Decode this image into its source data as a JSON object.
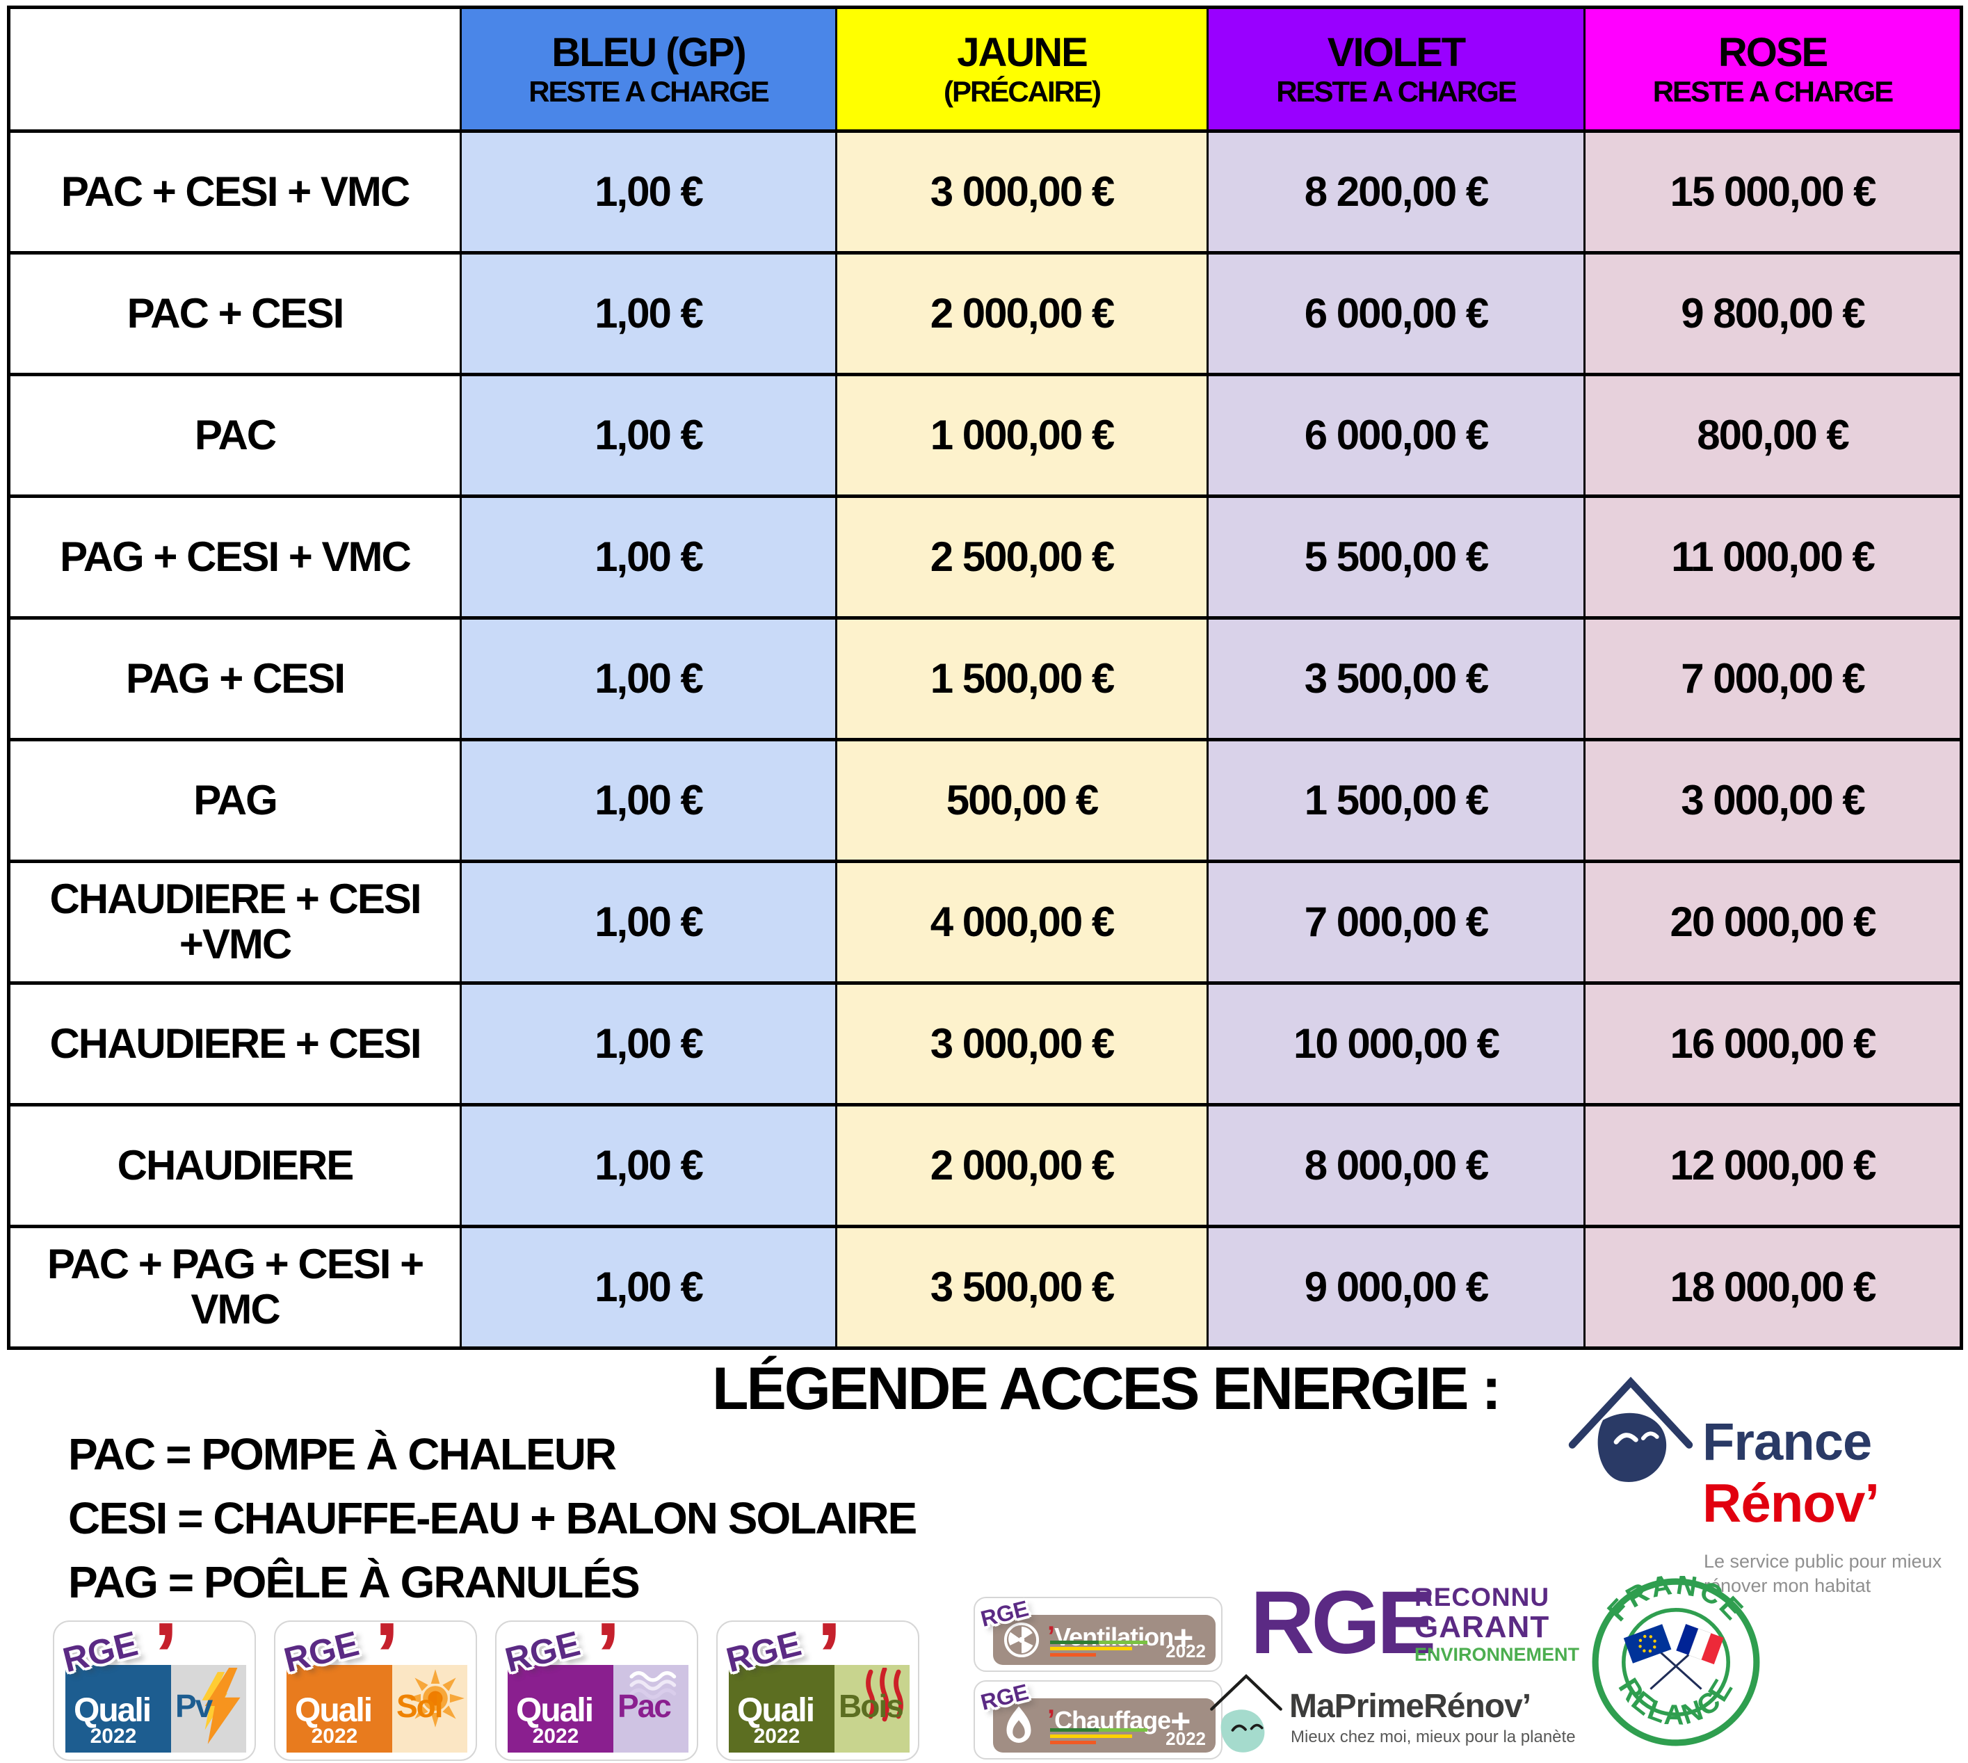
{
  "table": {
    "columns": [
      {
        "title": "",
        "subtitle": "",
        "header_bg": "#ffffff",
        "cell_bg": "#ffffff"
      },
      {
        "title": "BLEU (GP)",
        "subtitle": "RESTE A CHARGE",
        "header_bg": "#4a86e8",
        "cell_bg": "#c9daf8"
      },
      {
        "title": "JAUNE",
        "subtitle": "(PRÉCAIRE)",
        "header_bg": "#ffff00",
        "cell_bg": "#fdf2cc"
      },
      {
        "title": "VIOLET",
        "subtitle": "RESTE A CHARGE",
        "header_bg": "#9900ff",
        "cell_bg": "#d9d2e9"
      },
      {
        "title": "ROSE",
        "subtitle": "RESTE A CHARGE",
        "header_bg": "#ff00ff",
        "cell_bg": "#e7d1dc"
      }
    ],
    "rows": [
      {
        "label": "PAC + CESI + VMC",
        "values": [
          "1,00 €",
          "3 000,00 €",
          "8 200,00 €",
          "15 000,00 €"
        ]
      },
      {
        "label": "PAC + CESI",
        "values": [
          "1,00 €",
          "2 000,00 €",
          "6 000,00 €",
          "9 800,00 €"
        ]
      },
      {
        "label": "PAC",
        "values": [
          "1,00 €",
          "1 000,00 €",
          "6 000,00 €",
          "800,00 €"
        ]
      },
      {
        "label": "PAG + CESI + VMC",
        "values": [
          "1,00 €",
          "2 500,00 €",
          "5 500,00 €",
          "11 000,00 €"
        ]
      },
      {
        "label": "PAG + CESI",
        "values": [
          "1,00 €",
          "1 500,00 €",
          "3 500,00 €",
          "7 000,00 €"
        ]
      },
      {
        "label": "PAG",
        "values": [
          "1,00 €",
          "500,00 €",
          "1 500,00 €",
          "3 000,00 €"
        ]
      },
      {
        "label": "CHAUDIERE + CESI +VMC",
        "values": [
          "1,00 €",
          "4 000,00 €",
          "7 000,00 €",
          "20 000,00 €"
        ]
      },
      {
        "label": "CHAUDIERE + CESI",
        "values": [
          "1,00 €",
          "3 000,00 €",
          "10 000,00 €",
          "16 000,00 €"
        ]
      },
      {
        "label": "CHAUDIERE",
        "values": [
          "1,00 €",
          "2 000,00 €",
          "8 000,00 €",
          "12 000,00 €"
        ]
      },
      {
        "label": "PAC + PAG + CESI + VMC",
        "values": [
          "1,00 €",
          "3 500,00 €",
          "9 000,00 €",
          "18 000,00 €"
        ]
      }
    ]
  },
  "legend": {
    "title": "LÉGENDE ACCES ENERGIE :",
    "items": [
      "PAC = POMPE À CHALEUR",
      "CESI = CHAUFFE-EAU + BALON SOLAIRE",
      "PAG = POÊLE À GRANULÉS"
    ]
  },
  "footer_logos": {
    "apostrophe": "’",
    "quali": [
      {
        "rge": "RGE",
        "brand": "Quali",
        "suffix": "Pv",
        "year": "2022",
        "icon": "lightning-icon",
        "main_color": "#1d5d90",
        "side_color": "#d8d8d8",
        "suffix_color": "#1d5d90"
      },
      {
        "rge": "RGE",
        "brand": "Quali",
        "suffix": "Sol",
        "year": "2022",
        "icon": "sun-icon",
        "main_color": "#e87b1e",
        "side_color": "#fbe6c4",
        "suffix_color": "#ef8200"
      },
      {
        "rge": "RGE",
        "brand": "Quali",
        "suffix": "Pac",
        "year": "2022",
        "icon": "waves-icon",
        "main_color": "#8a1f8f",
        "side_color": "#cfc3e3",
        "suffix_color": "#8a1f8f"
      },
      {
        "rge": "RGE",
        "brand": "Quali",
        "suffix": "Bois",
        "year": "2022",
        "icon": "heat-lines-icon",
        "main_color": "#5c6e21",
        "side_color": "#c8d48e",
        "suffix_color": "#5c6e21"
      }
    ],
    "plus": [
      {
        "rge": "RGE",
        "label": "Ventilation",
        "plus": "+",
        "year": "2022",
        "icon": "fan-icon"
      },
      {
        "rge": "RGE",
        "label": "Chauffage",
        "plus": "+",
        "year": "2022",
        "icon": "flame-icon"
      }
    ],
    "rge_main": {
      "acronym": "RGE",
      "line1": "RECONNU",
      "line2": "GARANT",
      "line3": "ENVIRONNEMENT"
    },
    "maprimerenov": {
      "name": "MaPrimeRénov’",
      "tagline": "Mieux chez moi, mieux pour la planète"
    },
    "france_relance": {
      "top": "FRANCE",
      "bottom": "RELANCE"
    },
    "france_renov": {
      "line1": "France",
      "line2": "Rénov’",
      "tagline1": "Le service public pour mieux",
      "tagline2": "rénover mon habitat"
    }
  },
  "colors": {
    "table_border": "#000000",
    "rge_purple": "#5b2a84",
    "rge_green": "#4cae4f",
    "relance_green": "#2f9e4f",
    "renov_navy": "#2a3a66",
    "renov_red": "#e1000f",
    "taupe": "#a18e84",
    "red_accent": "#c5202c"
  }
}
